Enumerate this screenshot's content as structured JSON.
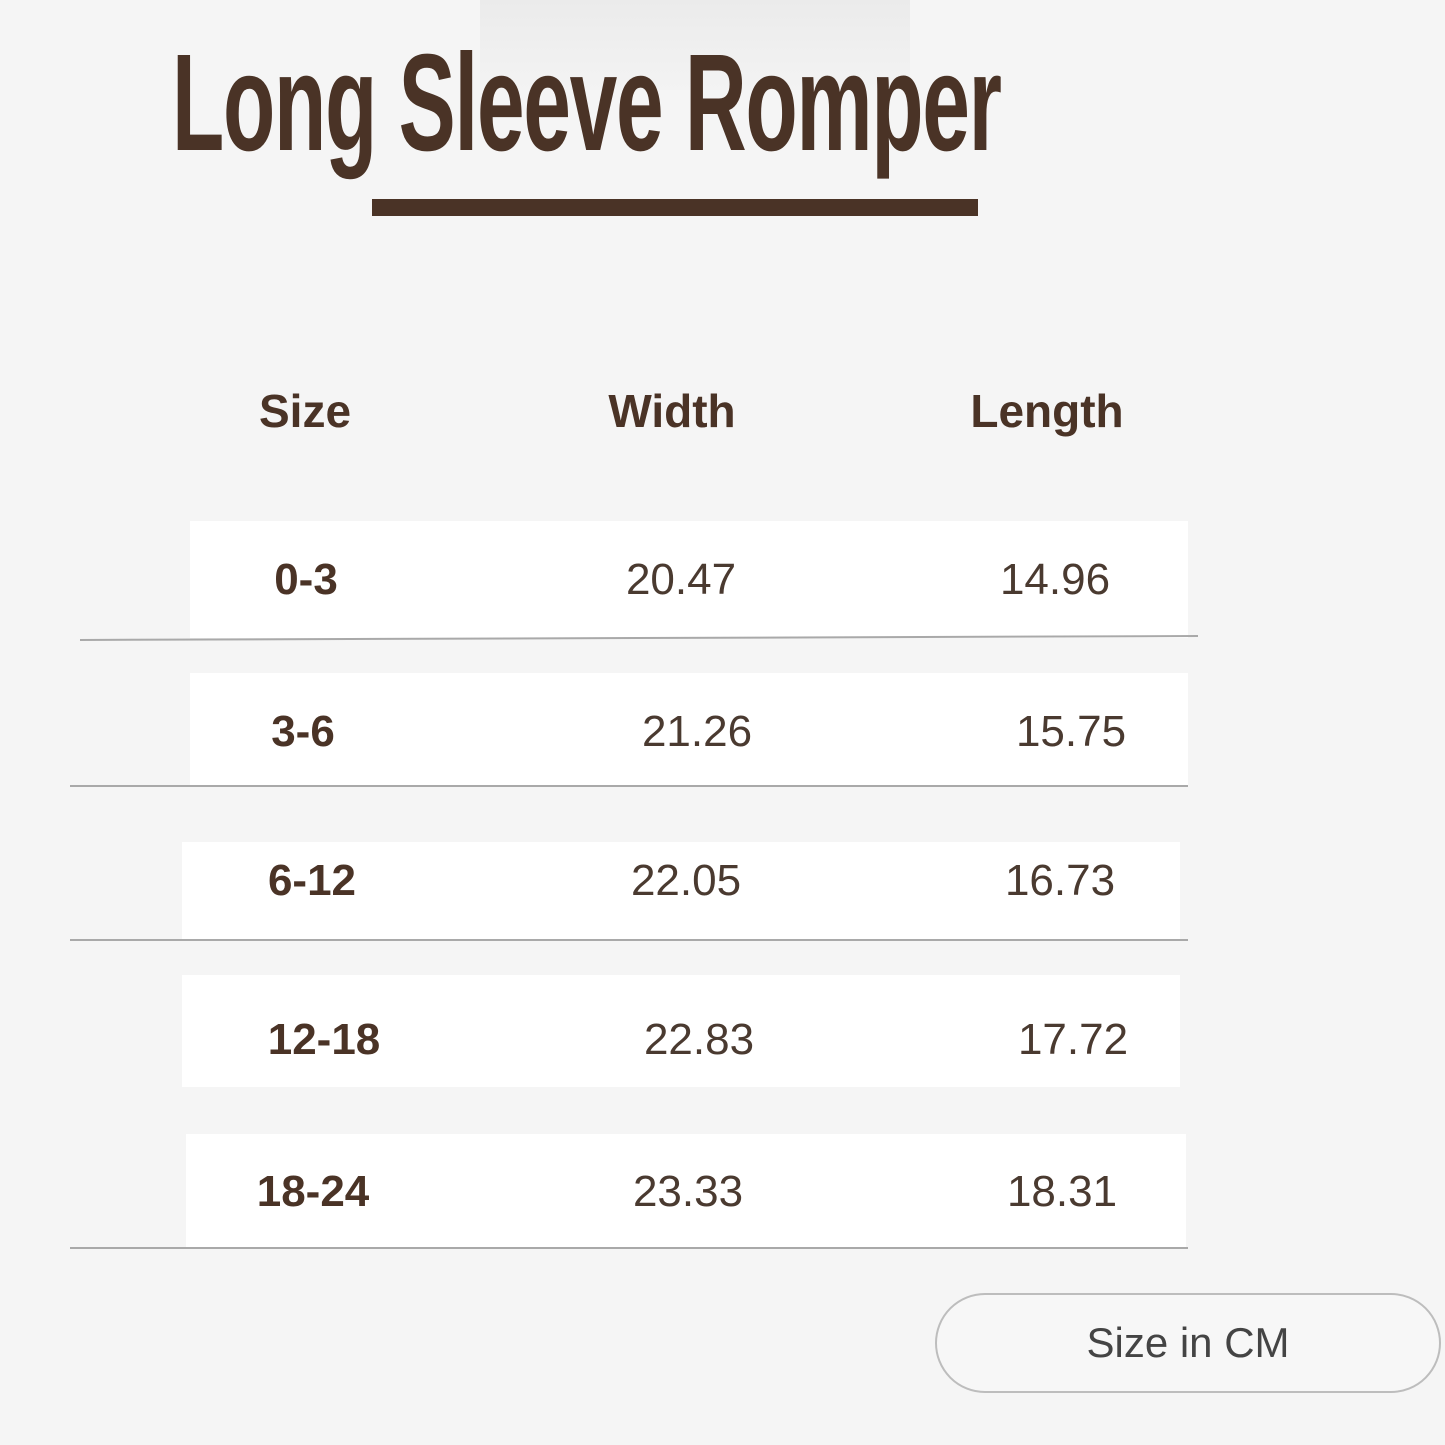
{
  "title": "Long Sleeve Romper",
  "table": {
    "headers": [
      "Size",
      "Width",
      "Length"
    ],
    "rows": [
      {
        "size": "0-3",
        "width": "20.47",
        "length": "14.96"
      },
      {
        "size": "3-6",
        "width": "21.26",
        "length": "15.75"
      },
      {
        "size": "6-12",
        "width": "22.05",
        "length": "16.73"
      },
      {
        "size": "12-18",
        "width": "22.83",
        "length": "17.72"
      },
      {
        "size": "18-24",
        "width": "23.33",
        "length": "18.31"
      }
    ]
  },
  "unit_button": "Size in CM",
  "colors": {
    "text": "#4a3326",
    "background": "#f5f5f5",
    "row": "#ffffff"
  }
}
